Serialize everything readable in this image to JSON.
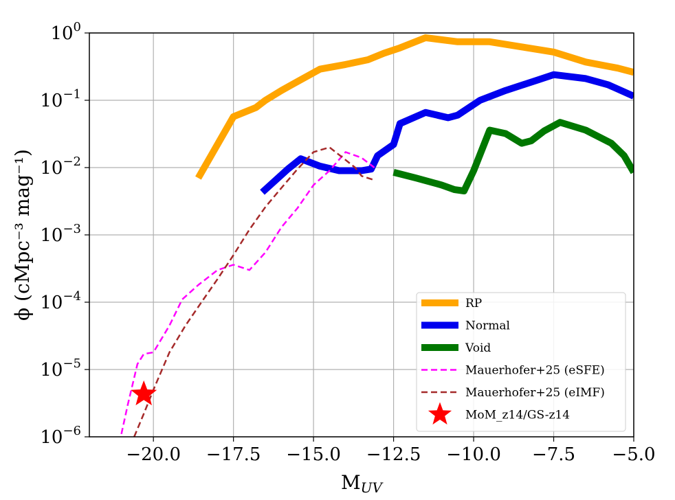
{
  "chart_data": {
    "type": "line",
    "xlabel": "M",
    "xlabel_sub": "UV",
    "ylabel": "ϕ (cMpc⁻³ mag⁻¹)",
    "xlim": [
      -22,
      -5
    ],
    "ylim": [
      1e-06,
      1
    ],
    "y_scale": "log",
    "grid": true,
    "legend_position": "lower-right",
    "x_ticks": [
      {
        "value": -20.0,
        "label": "−20.0"
      },
      {
        "value": -17.5,
        "label": "−17.5"
      },
      {
        "value": -15.0,
        "label": "−15.0"
      },
      {
        "value": -12.5,
        "label": "−12.5"
      },
      {
        "value": -10.0,
        "label": "−10.0"
      },
      {
        "value": -7.5,
        "label": "−7.5"
      },
      {
        "value": -5.0,
        "label": "−5.0"
      }
    ],
    "y_ticks": [
      {
        "value": 1.0,
        "base": "10",
        "exp": "0"
      },
      {
        "value": 0.1,
        "base": "10",
        "exp": "−1"
      },
      {
        "value": 0.01,
        "base": "10",
        "exp": "−2"
      },
      {
        "value": 0.001,
        "base": "10",
        "exp": "−3"
      },
      {
        "value": 0.0001,
        "base": "10",
        "exp": "−4"
      },
      {
        "value": 1e-05,
        "base": "10",
        "exp": "−5"
      },
      {
        "value": 1e-06,
        "base": "10",
        "exp": "−6"
      }
    ],
    "series": [
      {
        "name": "RP",
        "color": "#ffa500",
        "style": "solid-thick",
        "points": [
          [
            -18.6,
            0.007
          ],
          [
            -17.5,
            0.057
          ],
          [
            -16.8,
            0.078
          ],
          [
            -16.5,
            0.1
          ],
          [
            -16.0,
            0.14
          ],
          [
            -15.5,
            0.19
          ],
          [
            -14.8,
            0.29
          ],
          [
            -14.0,
            0.34
          ],
          [
            -13.3,
            0.4
          ],
          [
            -12.8,
            0.5
          ],
          [
            -12.3,
            0.6
          ],
          [
            -11.5,
            0.85
          ],
          [
            -10.5,
            0.74
          ],
          [
            -9.5,
            0.74
          ],
          [
            -8.5,
            0.62
          ],
          [
            -7.5,
            0.52
          ],
          [
            -6.5,
            0.37
          ],
          [
            -5.5,
            0.3
          ],
          [
            -5.0,
            0.26
          ]
        ]
      },
      {
        "name": "Normal",
        "color": "#0000ee",
        "style": "solid-thick",
        "points": [
          [
            -16.6,
            0.0043
          ],
          [
            -15.8,
            0.0095
          ],
          [
            -15.4,
            0.0135
          ],
          [
            -14.8,
            0.0105
          ],
          [
            -14.2,
            0.009
          ],
          [
            -13.5,
            0.009
          ],
          [
            -13.2,
            0.0095
          ],
          [
            -13.0,
            0.015
          ],
          [
            -12.5,
            0.022
          ],
          [
            -12.3,
            0.045
          ],
          [
            -11.5,
            0.066
          ],
          [
            -10.8,
            0.055
          ],
          [
            -10.5,
            0.06
          ],
          [
            -9.8,
            0.1
          ],
          [
            -9.0,
            0.14
          ],
          [
            -8.0,
            0.2
          ],
          [
            -7.5,
            0.24
          ],
          [
            -6.5,
            0.21
          ],
          [
            -5.8,
            0.17
          ],
          [
            -5.0,
            0.115
          ]
        ]
      },
      {
        "name": "Void",
        "color": "#007700",
        "style": "solid-thick",
        "points": [
          [
            -12.5,
            0.0085
          ],
          [
            -11.8,
            0.007
          ],
          [
            -11.0,
            0.0055
          ],
          [
            -10.6,
            0.0047
          ],
          [
            -10.3,
            0.0045
          ],
          [
            -10.0,
            0.009
          ],
          [
            -9.5,
            0.036
          ],
          [
            -9.0,
            0.032
          ],
          [
            -8.5,
            0.023
          ],
          [
            -8.2,
            0.025
          ],
          [
            -7.8,
            0.035
          ],
          [
            -7.3,
            0.047
          ],
          [
            -6.5,
            0.036
          ],
          [
            -5.7,
            0.023
          ],
          [
            -5.3,
            0.015
          ],
          [
            -5.0,
            0.0085
          ]
        ]
      },
      {
        "name": "Mauerhofer+25 (eSFE)",
        "color": "#ff00ff",
        "style": "dashed",
        "points": [
          [
            -21.0,
            1.1e-06
          ],
          [
            -20.8,
            3e-06
          ],
          [
            -20.5,
            1.2e-05
          ],
          [
            -20.3,
            1.7e-05
          ],
          [
            -20.0,
            1.8e-05
          ],
          [
            -19.5,
            4.5e-05
          ],
          [
            -19.1,
            0.00011
          ],
          [
            -18.6,
            0.00018
          ],
          [
            -18.0,
            0.0003
          ],
          [
            -17.5,
            0.00036
          ],
          [
            -17.0,
            0.0003
          ],
          [
            -16.5,
            0.00055
          ],
          [
            -16.0,
            0.0013
          ],
          [
            -15.5,
            0.0025
          ],
          [
            -15.0,
            0.0055
          ],
          [
            -14.5,
            0.009
          ],
          [
            -14.0,
            0.017
          ],
          [
            -13.5,
            0.014
          ],
          [
            -13.1,
            0.01
          ]
        ]
      },
      {
        "name": "Mauerhofer+25 (eIMF)",
        "color": "#a52a2a",
        "style": "dashed",
        "points": [
          [
            -20.6,
            1e-06
          ],
          [
            -20.3,
            2.2e-06
          ],
          [
            -20.0,
            5e-06
          ],
          [
            -19.5,
            1.8e-05
          ],
          [
            -19.0,
            4.5e-05
          ],
          [
            -18.5,
            0.0001
          ],
          [
            -18.0,
            0.00022
          ],
          [
            -17.5,
            0.0005
          ],
          [
            -17.0,
            0.0012
          ],
          [
            -16.5,
            0.0026
          ],
          [
            -16.0,
            0.005
          ],
          [
            -15.5,
            0.0095
          ],
          [
            -15.0,
            0.017
          ],
          [
            -14.5,
            0.02
          ],
          [
            -14.0,
            0.013
          ],
          [
            -13.7,
            0.01
          ],
          [
            -13.5,
            0.0075
          ],
          [
            -13.1,
            0.0065
          ]
        ]
      },
      {
        "name": "MoM_z14/GS-z14",
        "color": "#ff0000",
        "style": "star",
        "points": [
          [
            -20.3,
            4.3e-06
          ]
        ]
      }
    ]
  }
}
